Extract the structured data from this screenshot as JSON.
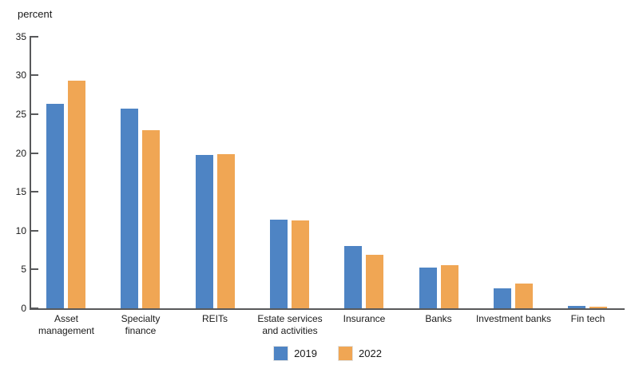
{
  "chart_data": {
    "type": "bar",
    "title": "",
    "ylabel": "percent",
    "xlabel": "",
    "ylim": [
      0,
      35
    ],
    "y_ticks": [
      0,
      5,
      10,
      15,
      20,
      25,
      30,
      35
    ],
    "grid": false,
    "legend_position": "bottom-center",
    "categories": [
      "Asset management",
      "Specialty finance",
      "REITs",
      "Estate services and activities",
      "Insurance",
      "Banks",
      "Investment banks",
      "Fin tech"
    ],
    "category_lines": [
      [
        "Asset",
        "management"
      ],
      [
        "Specialty",
        "finance"
      ],
      [
        "REITs"
      ],
      [
        "Estate services",
        "and activities"
      ],
      [
        "Insurance"
      ],
      [
        "Banks"
      ],
      [
        "Investment banks"
      ],
      [
        "Fin tech"
      ]
    ],
    "series": [
      {
        "name": "2019",
        "color": "#4E84C4",
        "values": [
          26.3,
          25.7,
          19.8,
          11.4,
          8.0,
          5.2,
          2.6,
          0.3
        ]
      },
      {
        "name": "2022",
        "color": "#F0A654",
        "values": [
          29.3,
          22.9,
          19.9,
          11.3,
          6.9,
          5.6,
          3.2,
          0.2
        ]
      }
    ],
    "axis_color": "#58595B",
    "text_color": "#1A1A1A"
  },
  "legend": {
    "items": [
      {
        "label": "2019",
        "color": "#4E84C4"
      },
      {
        "label": "2022",
        "color": "#F0A654"
      }
    ]
  }
}
